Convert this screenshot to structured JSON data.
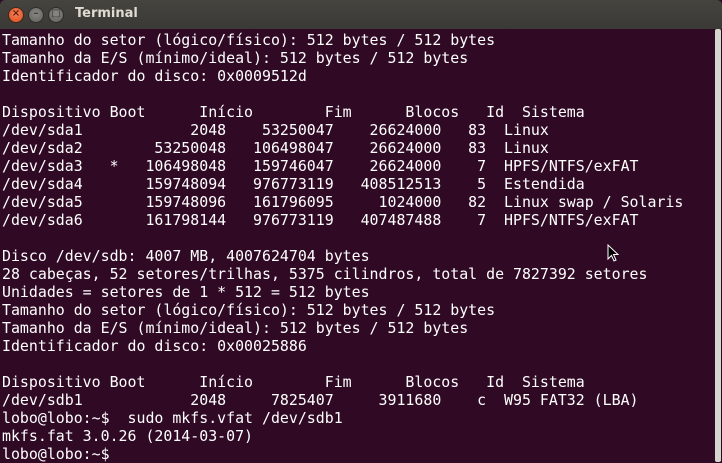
{
  "window": {
    "title": "Terminal",
    "close_icon": "×",
    "minimize_icon": "–",
    "maximize_icon": "□"
  },
  "colors": {
    "background": "#300a24",
    "text": "#ffffff",
    "titlebar": "#3c3b37",
    "close": "#df4a16"
  },
  "terminal": {
    "lines": [
      "Tamanho do setor (lógico/físico): 512 bytes / 512 bytes",
      "Tamanho da E/S (mínimo/ideal): 512 bytes / 512 bytes",
      "Identificador do disco: 0x0009512d",
      "",
      "Dispositivo Boot      Início        Fim      Blocos   Id  Sistema",
      "/dev/sda1            2048    53250047    26624000   83  Linux",
      "/dev/sda2        53250048   106498047    26624000   83  Linux",
      "/dev/sda3   *   106498048   159746047    26624000    7  HPFS/NTFS/exFAT",
      "/dev/sda4       159748094   976773119   408512513    5  Estendida",
      "/dev/sda5       159748096   161796095     1024000   82  Linux swap / Solaris",
      "/dev/sda6       161798144   976773119   407487488    7  HPFS/NTFS/exFAT",
      "",
      "Disco /dev/sdb: 4007 MB, 4007624704 bytes",
      "28 cabeças, 52 setores/trilhas, 5375 cilindros, total de 7827392 setores",
      "Unidades = setores de 1 * 512 = 512 bytes",
      "Tamanho do setor (lógico/físico): 512 bytes / 512 bytes",
      "Tamanho da E/S (mínimo/ideal): 512 bytes / 512 bytes",
      "Identificador do disco: 0x00025886",
      "",
      "Dispositivo Boot      Início        Fim      Blocos   Id  Sistema",
      "/dev/sdb1            2048     7825407     3911680    c  W95 FAT32 (LBA)",
      "lobo@lobo:~$  sudo mkfs.vfat /dev/sdb1",
      "mkfs.fat 3.0.26 (2014-03-07)",
      "lobo@lobo:~$ "
    ]
  }
}
